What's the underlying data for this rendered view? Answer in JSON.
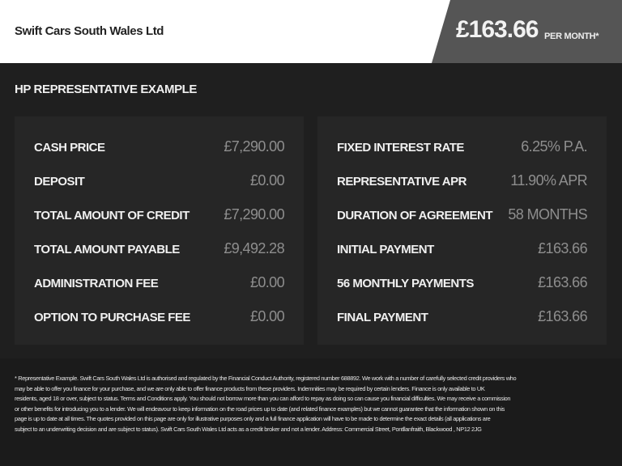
{
  "header": {
    "dealer_name": "Swift Cars South Wales Ltd",
    "monthly_price": "£163.66",
    "per_month_label": "PER MONTH*"
  },
  "section_title": "HP REPRESENTATIVE EXAMPLE",
  "left_panel": [
    {
      "label": "CASH PRICE",
      "value": "£7,290.00"
    },
    {
      "label": "DEPOSIT",
      "value": "£0.00"
    },
    {
      "label": "TOTAL AMOUNT OF CREDIT",
      "value": "£7,290.00"
    },
    {
      "label": "TOTAL AMOUNT PAYABLE",
      "value": "£9,492.28"
    },
    {
      "label": "ADMINISTRATION FEE",
      "value": "£0.00"
    },
    {
      "label": "OPTION TO PURCHASE FEE",
      "value": "£0.00"
    }
  ],
  "right_panel": [
    {
      "label": "FIXED INTEREST RATE",
      "value": "6.25% P.A."
    },
    {
      "label": "REPRESENTATIVE APR",
      "value": "11.90% APR"
    },
    {
      "label": "DURATION OF AGREEMENT",
      "value": "58 MONTHS"
    },
    {
      "label": "INITIAL PAYMENT",
      "value": "£163.66"
    },
    {
      "label": "56 MONTHLY PAYMENTS",
      "value": "£163.66"
    },
    {
      "label": "FINAL PAYMENT",
      "value": "£163.66"
    }
  ],
  "disclaimer_lines": [
    "* Representative Example. Swift Cars South Wales Ltd  is authorised and regulated by the Financial Conduct Authority, registered number 688892. We work with a number of carefully selected credit providers who",
    "may be able to offer you finance for your purchase, and we are only able to offer finance products from these providers. Indemnities may be required by certain lenders. Finance is only available to UK",
    "residents, aged 18 or over, subject to status. Terms and Conditions apply. You should not borrow more than you can afford to repay as doing so can cause you financial difficulties. We may receive a commission",
    "or other benefits for introducing you to a lender. We will endeavour to keep information on the road prices up to date (and related finance examples) but we cannot guarantee that the information shown on this",
    "page is up to date at all times. The quotes provided on this page are only for illustrative purposes only and a full finance application will have to be made to determine the exact details (all applications are",
    "subject to an underwriting decision and are subject to status). Swift Cars South Wales Ltd  acts as a credit broker and not a lender. Address: Commercial Street, Pontllanfraith, Blackwood , NP12 2JG"
  ],
  "colors": {
    "header_bg": "#ffffff",
    "price_bg": "#555555",
    "body_bg": "#1f1f1f",
    "panel_bg": "#262626",
    "value_text": "#8e8e8e"
  }
}
